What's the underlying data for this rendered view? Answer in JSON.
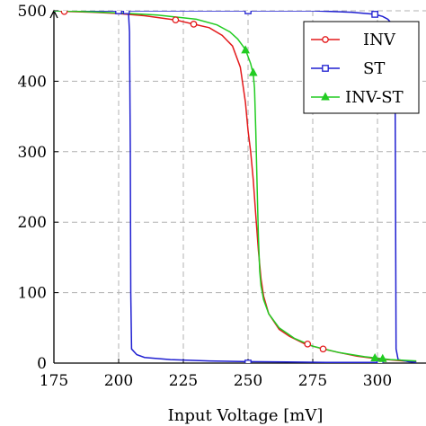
{
  "chart_data": {
    "type": "line",
    "title": "",
    "xlabel": "Input Voltage [mV]",
    "ylabel": "",
    "xlim": [
      175,
      315
    ],
    "ylim": [
      0,
      500
    ],
    "x_ticks": [
      175,
      200,
      225,
      250,
      275,
      300
    ],
    "x_tick_labels": [
      "175",
      "200",
      "225",
      "250",
      "275",
      "300"
    ],
    "y_ticks": [
      0,
      100,
      200,
      300,
      400,
      500
    ],
    "y_tick_labels": [
      "0",
      "100",
      "200",
      "300",
      "400",
      "500"
    ],
    "grid": true,
    "legend_position": "top-right",
    "series": [
      {
        "name": "INV",
        "color": "#e31a1c",
        "marker": "circle",
        "points": [
          [
            175,
            500
          ],
          [
            180,
            499
          ],
          [
            190,
            498
          ],
          [
            200,
            496
          ],
          [
            210,
            493
          ],
          [
            222,
            487
          ],
          [
            229,
            481
          ],
          [
            235,
            476
          ],
          [
            240,
            465
          ],
          [
            244,
            450
          ],
          [
            247,
            420
          ],
          [
            249,
            370
          ],
          [
            250,
            330
          ],
          [
            251,
            300
          ],
          [
            252,
            260
          ],
          [
            253,
            210
          ],
          [
            254,
            160
          ],
          [
            255,
            120
          ],
          [
            256,
            95
          ],
          [
            258,
            70
          ],
          [
            262,
            48
          ],
          [
            266,
            38
          ],
          [
            272,
            27
          ],
          [
            279,
            20
          ],
          [
            285,
            15
          ],
          [
            292,
            10
          ],
          [
            300,
            6
          ],
          [
            310,
            3
          ],
          [
            315,
            2
          ]
        ],
        "marker_points": [
          [
            179,
            499
          ],
          [
            222,
            487
          ],
          [
            229,
            481
          ],
          [
            273,
            27
          ],
          [
            279,
            20
          ]
        ]
      },
      {
        "name": "ST",
        "color": "#1f1fd1",
        "marker": "square",
        "points": [
          [
            175,
            500
          ],
          [
            200,
            500
          ],
          [
            203,
            500
          ],
          [
            203.8,
            499
          ],
          [
            204.2,
            470
          ],
          [
            204.5,
            300
          ],
          [
            204.7,
            100
          ],
          [
            205,
            20
          ],
          [
            207,
            12
          ],
          [
            210,
            8
          ],
          [
            220,
            5
          ],
          [
            235,
            3
          ],
          [
            250,
            2
          ],
          [
            265,
            1.5
          ],
          [
            280,
            1
          ],
          [
            300,
            1
          ],
          [
            302,
            1
          ]
        ],
        "points_upper": [
          [
            175,
            500
          ],
          [
            200,
            500
          ],
          [
            250,
            500
          ],
          [
            275,
            500
          ],
          [
            290,
            498
          ],
          [
            299,
            495
          ],
          [
            302,
            492
          ],
          [
            304,
            488
          ],
          [
            306,
            480
          ],
          [
            306.8,
            400
          ],
          [
            307,
            200
          ],
          [
            307.2,
            20
          ],
          [
            308,
            5
          ],
          [
            312,
            2
          ],
          [
            315,
            1
          ]
        ],
        "marker_points": [
          [
            200,
            500
          ],
          [
            203,
            500
          ],
          [
            250,
            500
          ],
          [
            299,
            495
          ],
          [
            250,
            0
          ],
          [
            301,
            0
          ]
        ]
      },
      {
        "name": "INV-ST",
        "color": "#22cc22",
        "marker": "triangle",
        "points": [
          [
            175,
            500
          ],
          [
            185,
            499
          ],
          [
            200,
            497
          ],
          [
            215,
            494
          ],
          [
            230,
            488
          ],
          [
            238,
            480
          ],
          [
            243,
            470
          ],
          [
            246,
            460
          ],
          [
            249,
            445
          ],
          [
            251,
            425
          ],
          [
            252,
            410
          ],
          [
            252.5,
            390
          ],
          [
            253,
            330
          ],
          [
            253.5,
            250
          ],
          [
            254,
            180
          ],
          [
            254.5,
            130
          ],
          [
            255,
            110
          ],
          [
            256,
            90
          ],
          [
            258,
            70
          ],
          [
            262,
            50
          ],
          [
            268,
            35
          ],
          [
            275,
            24
          ],
          [
            285,
            15
          ],
          [
            295,
            9
          ],
          [
            305,
            5
          ],
          [
            315,
            3
          ]
        ],
        "marker_points": [
          [
            249,
            444
          ],
          [
            252,
            412
          ],
          [
            299,
            7
          ],
          [
            302,
            6
          ]
        ]
      }
    ]
  }
}
